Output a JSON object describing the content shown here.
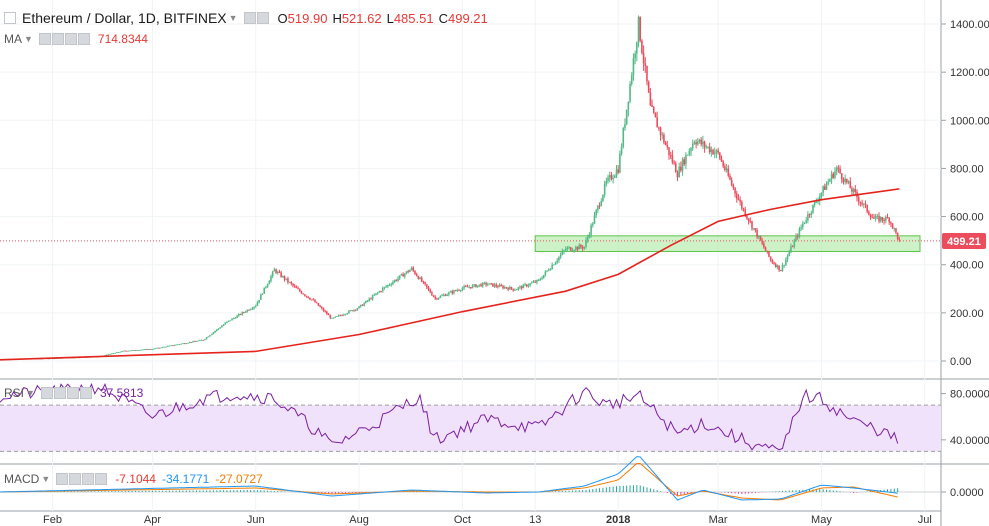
{
  "header": {
    "symbol_title": "Ethereum / Dollar, 1D, BITFINEX",
    "ohlc": [
      {
        "label": "O",
        "value": "519.90"
      },
      {
        "label": "H",
        "value": "521.62"
      },
      {
        "label": "L",
        "value": "485.51"
      },
      {
        "label": "C",
        "value": "499.21"
      }
    ]
  },
  "ma_legend": {
    "label": "MA",
    "value": "714.8344"
  },
  "rsi_legend": {
    "label": "RSI",
    "value": "37.5813"
  },
  "macd_legend": {
    "label": "MACD",
    "values": [
      "-7.1044",
      "-34.1771",
      "-27.0727"
    ]
  },
  "price_badge": "499.21",
  "colors": {
    "up": "#53b987",
    "down": "#eb4d5c",
    "ma": "#e5231c",
    "rsi": "#7b1fa2",
    "rsi_band": "#f0e2fb",
    "macd": "#2196f3",
    "signal": "#f57c00",
    "zone": "#a6e89a"
  },
  "chart_data": [
    {
      "type": "candlestick",
      "title": "Ethereum / Dollar, 1D, BITFINEX",
      "x_tick_labels": [
        "Feb",
        "Apr",
        "Jun",
        "Aug",
        "Oct",
        "13",
        "2018",
        "Mar",
        "May",
        "Jul"
      ],
      "y_tick_labels": [
        "0.00",
        "200.00",
        "400.00",
        "600.00",
        "800.00",
        "1000.00",
        "1200.00",
        "1400.00"
      ],
      "ylim": [
        0,
        1400
      ],
      "support_zone": [
        455,
        520
      ],
      "last_close": 499.21,
      "close_series": {
        "x": [
          "2017-01-01",
          "2017-02-01",
          "2017-03-01",
          "2017-03-15",
          "2017-04-01",
          "2017-05-01",
          "2017-05-15",
          "2017-06-01",
          "2017-06-12",
          "2017-06-25",
          "2017-07-05",
          "2017-07-16",
          "2017-08-01",
          "2017-08-15",
          "2017-09-01",
          "2017-09-15",
          "2017-10-01",
          "2017-10-15",
          "2017-11-01",
          "2017-11-15",
          "2017-12-01",
          "2017-12-12",
          "2017-12-25",
          "2018-01-01",
          "2018-01-13",
          "2018-01-20",
          "2018-02-05",
          "2018-02-15",
          "2018-03-01",
          "2018-03-15",
          "2018-04-01",
          "2018-04-07",
          "2018-04-20",
          "2018-05-01",
          "2018-05-10",
          "2018-05-20",
          "2018-06-01",
          "2018-06-10",
          "2018-06-16"
        ],
        "y": [
          8,
          11,
          19,
          42,
          50,
          88,
          162,
          232,
          378,
          300,
          250,
          175,
          223,
          300,
          383,
          260,
          303,
          320,
          298,
          333,
          465,
          475,
          740,
          800,
          1400,
          1050,
          780,
          920,
          860,
          640,
          420,
          378,
          570,
          700,
          800,
          700,
          590,
          590,
          499
        ]
      },
      "ma_series": {
        "x": [
          "2017-01-01",
          "2017-06-01",
          "2017-08-01",
          "2017-10-01",
          "2017-12-01",
          "2018-01-01",
          "2018-02-01",
          "2018-03-01",
          "2018-04-01",
          "2018-05-01",
          "2018-06-16"
        ],
        "y": [
          5,
          40,
          110,
          205,
          290,
          360,
          480,
          580,
          630,
          670,
          715
        ]
      }
    },
    {
      "type": "line",
      "name": "RSI",
      "y_tick_labels": [
        "40.0000",
        "80.0000"
      ],
      "ylim": [
        20,
        90
      ],
      "band": [
        30,
        70
      ],
      "x": [
        "2017-01-01",
        "2017-02-01",
        "2017-03-01",
        "2017-04-01",
        "2017-05-01",
        "2017-05-20",
        "2017-06-12",
        "2017-07-05",
        "2017-07-16",
        "2017-08-15",
        "2017-09-05",
        "2017-09-15",
        "2017-10-15",
        "2017-11-15",
        "2017-12-12",
        "2017-12-25",
        "2018-01-13",
        "2018-02-05",
        "2018-02-20",
        "2018-03-15",
        "2018-04-07",
        "2018-04-20",
        "2018-05-01",
        "2018-05-20",
        "2018-06-05",
        "2018-06-16"
      ],
      "y": [
        78,
        82,
        86,
        60,
        76,
        80,
        76,
        50,
        35,
        58,
        78,
        40,
        58,
        50,
        82,
        70,
        78,
        45,
        55,
        40,
        28,
        78,
        75,
        56,
        48,
        38
      ]
    },
    {
      "type": "line",
      "name": "MACD",
      "y_tick_labels": [
        "0.0000"
      ],
      "ylim": [
        -120,
        200
      ],
      "x": [
        "2017-01-01",
        "2017-06-01",
        "2017-07-16",
        "2017-09-01",
        "2017-10-15",
        "2017-11-15",
        "2017-12-12",
        "2018-01-01",
        "2018-01-13",
        "2018-02-05",
        "2018-02-20",
        "2018-03-15",
        "2018-04-07",
        "2018-05-01",
        "2018-05-20",
        "2018-06-16"
      ],
      "macd": [
        0,
        30,
        -20,
        10,
        -5,
        0,
        30,
        90,
        185,
        -40,
        10,
        -40,
        -35,
        35,
        20,
        -7
      ],
      "signal": [
        0,
        20,
        -10,
        5,
        0,
        0,
        20,
        60,
        150,
        -20,
        5,
        -30,
        -40,
        20,
        25,
        -27
      ]
    }
  ]
}
